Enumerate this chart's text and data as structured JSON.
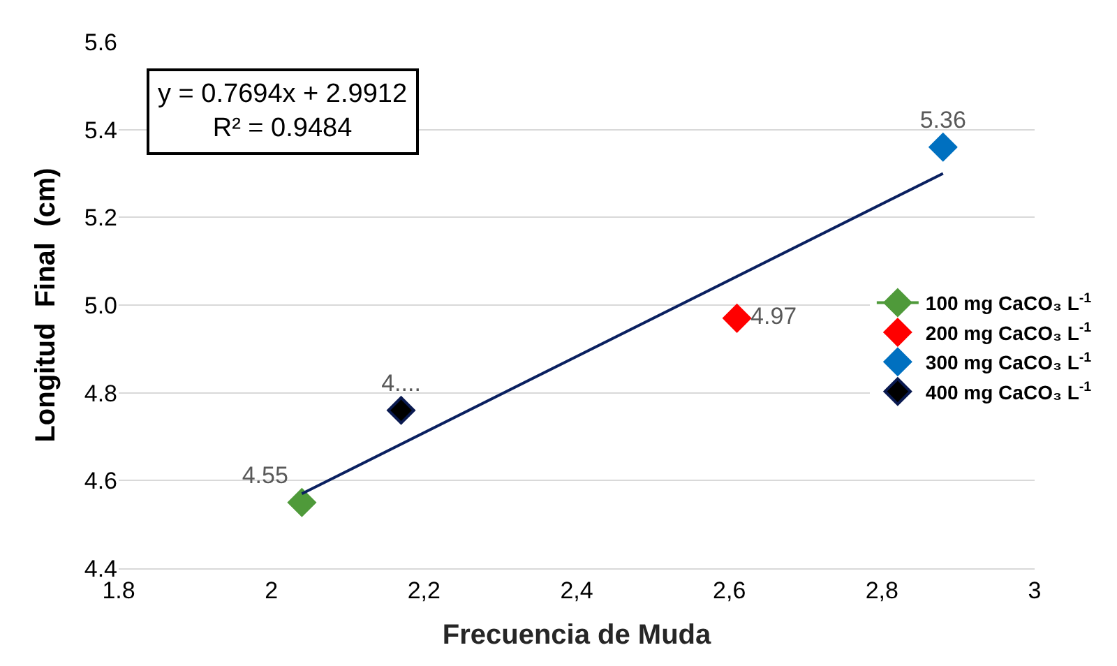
{
  "chart_data": {
    "type": "scatter",
    "xlabel": "Frecuencia de Muda",
    "ylabel": "Longitud  Final  (cm)",
    "annotations": [
      "y = 0.7694x + 2.9912\nR² = 0.9484"
    ],
    "xlim": [
      1.8,
      3.0
    ],
    "xticks": [
      {
        "value": 1.8,
        "label": "1.8"
      },
      {
        "value": 2.0,
        "label": "2"
      },
      {
        "value": 2.2,
        "label": "2,2"
      },
      {
        "value": 2.4,
        "label": "2,4"
      },
      {
        "value": 2.6,
        "label": "2,6"
      },
      {
        "value": 2.8,
        "label": "2,8"
      },
      {
        "value": 3.0,
        "label": "3"
      }
    ],
    "ylim": [
      4.4,
      5.6
    ],
    "yticks": [
      {
        "value": 4.4,
        "label": "4.4"
      },
      {
        "value": 4.6,
        "label": "4.6"
      },
      {
        "value": 4.8,
        "label": "4.8"
      },
      {
        "value": 5.0,
        "label": "5.0"
      },
      {
        "value": 5.2,
        "label": "5.2"
      },
      {
        "value": 5.4,
        "label": "5.4"
      },
      {
        "value": 5.6,
        "label": "5.6"
      }
    ],
    "grid": "y",
    "legend": "right",
    "marker": "diamond",
    "series": [
      {
        "name": "100 mg CaCO₃ L$^{-1}$",
        "type": "line",
        "color": "#4f9a3a",
        "x": [
          2.04
        ],
        "values": [
          4.55
        ],
        "value_labels": [
          "4.55"
        ]
      },
      {
        "name": "200 mg CaCO₃ L$^{-1}$",
        "color": "#ff0000",
        "x": [
          2.61
        ],
        "values": [
          4.97
        ],
        "value_labels": [
          "4.97"
        ]
      },
      {
        "name": "300 mg CaCO₃ L$^{-1}$",
        "color": "#0070c0",
        "x": [
          2.88
        ],
        "values": [
          5.36
        ],
        "value_labels": [
          "5.36"
        ]
      },
      {
        "name": "400 mg CaCO₃ L$^{-1}$",
        "color": "#0a1a50",
        "x": [
          2.17
        ],
        "values": [
          4.76
        ],
        "value_labels": [
          "4...."
        ]
      },
      {
        "type": "line",
        "color": "#0a2060",
        "marker": "none",
        "x": [
          2.04,
          2.88
        ],
        "values": [
          4.57,
          5.3
        ]
      }
    ]
  }
}
